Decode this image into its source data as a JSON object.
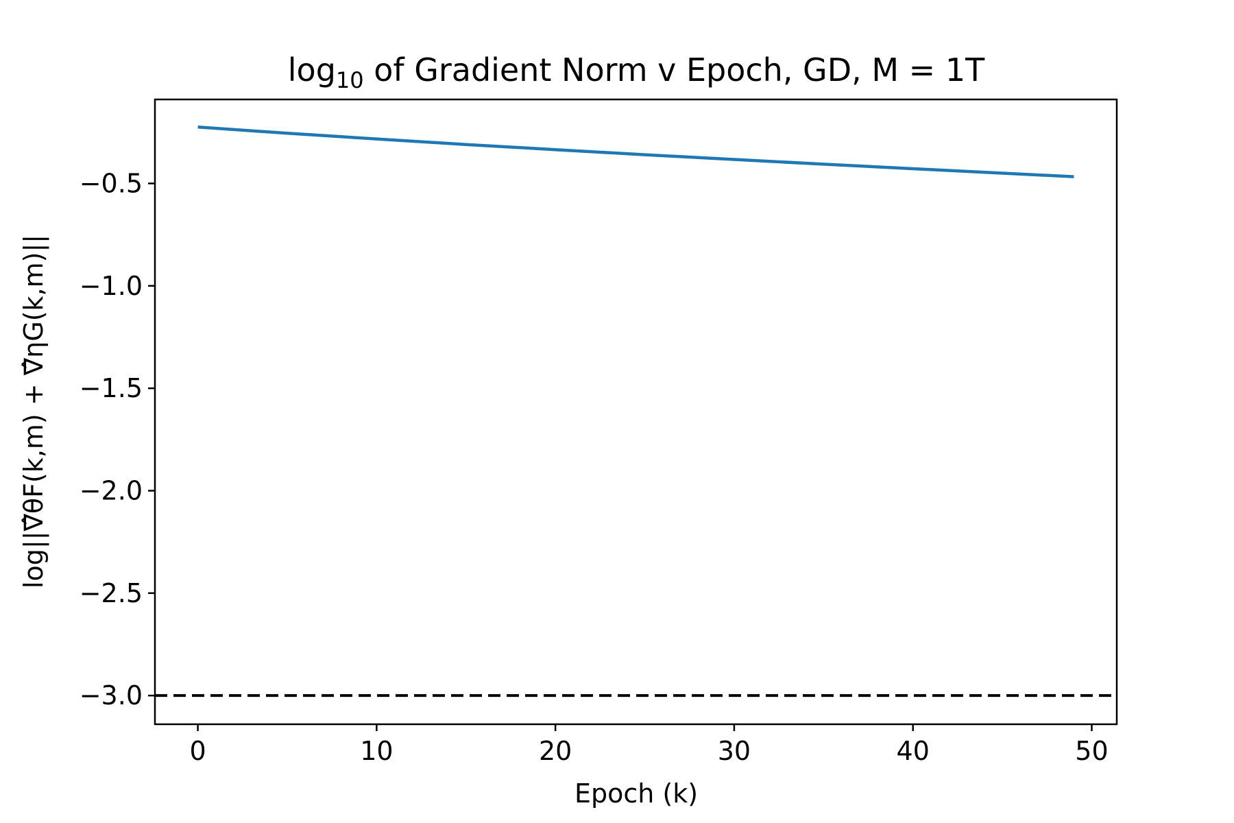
{
  "chart_data": {
    "type": "line",
    "title": {
      "prefix": "log",
      "subscript": "10",
      "suffix": " of Gradient Norm v Epoch, GD, M = 1T"
    },
    "xlabel": "Epoch (k)",
    "ylabel": "log||∇̂θF(k,m) + ∇̂ηG(k,m)||",
    "xlim": [
      -2.4,
      51.4
    ],
    "ylim": [
      -3.14,
      -0.09
    ],
    "xticks": [
      0,
      10,
      20,
      30,
      40,
      50
    ],
    "xtick_labels": [
      "0",
      "10",
      "20",
      "30",
      "40",
      "50"
    ],
    "yticks": [
      -0.5,
      -1.0,
      -1.5,
      -2.0,
      -2.5,
      -3.0
    ],
    "ytick_labels": [
      "−0.5",
      "−1.0",
      "−1.5",
      "−2.0",
      "−2.5",
      "−3.0"
    ],
    "grid": false,
    "series": [
      {
        "color": "#1f77b4",
        "style": "solid",
        "x": [
          0,
          5,
          10,
          15,
          20,
          25,
          30,
          35,
          40,
          45,
          49
        ],
        "y": [
          -0.225,
          -0.255,
          -0.283,
          -0.31,
          -0.335,
          -0.36,
          -0.383,
          -0.406,
          -0.428,
          -0.45,
          -0.467
        ]
      }
    ],
    "reference_lines": [
      {
        "y": -3.0,
        "color": "#000000",
        "style": "dashed"
      }
    ]
  }
}
